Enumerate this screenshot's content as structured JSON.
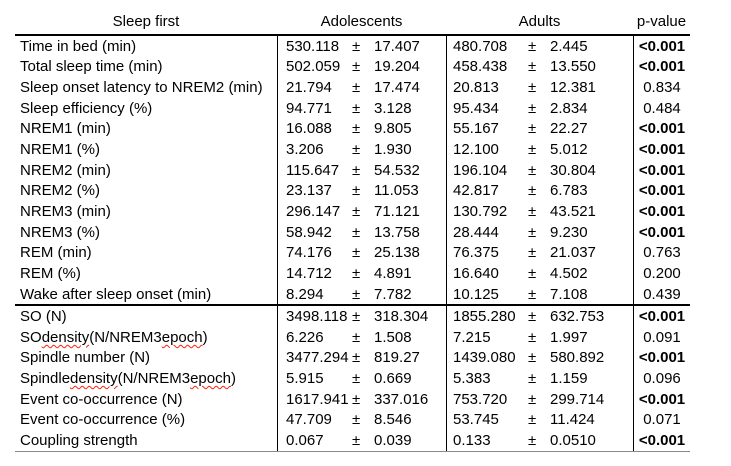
{
  "table": {
    "col_headers": {
      "label": "Sleep first",
      "group1": "Adolescents",
      "group2": "Adults",
      "pvalue": "p-value"
    },
    "plus_minus": "±",
    "sections": [
      {
        "rows": [
          {
            "label": "Time in bed (min)",
            "g1_mean": "530.118",
            "g1_sd": "17.407",
            "g2_mean": "480.708",
            "g2_sd": "2.445",
            "p": "<0.001",
            "p_bold": true
          },
          {
            "label": "Total sleep time (min)",
            "g1_mean": "502.059",
            "g1_sd": "19.204",
            "g2_mean": "458.438",
            "g2_sd": "13.550",
            "p": "<0.001",
            "p_bold": true
          },
          {
            "label": "Sleep onset latency to NREM2 (min)",
            "g1_mean": "21.794",
            "g1_sd": "17.474",
            "g2_mean": "20.813",
            "g2_sd": "12.381",
            "p": "0.834",
            "p_bold": false
          },
          {
            "label": "Sleep efficiency (%)",
            "g1_mean": "94.771",
            "g1_sd": "3.128",
            "g2_mean": "95.434",
            "g2_sd": "2.834",
            "p": "0.484",
            "p_bold": false
          },
          {
            "label": "NREM1 (min)",
            "g1_mean": "16.088",
            "g1_sd": "9.805",
            "g2_mean": "55.167",
            "g2_sd": "22.27",
            "p": "<0.001",
            "p_bold": true
          },
          {
            "label": "NREM1 (%)",
            "g1_mean": "3.206",
            "g1_sd": "1.930",
            "g2_mean": "12.100",
            "g2_sd": "5.012",
            "p": "<0.001",
            "p_bold": true
          },
          {
            "label": "NREM2 (min)",
            "g1_mean": "115.647",
            "g1_sd": "54.532",
            "g2_mean": "196.104",
            "g2_sd": "30.804",
            "p": "<0.001",
            "p_bold": true
          },
          {
            "label": "NREM2 (%)",
            "g1_mean": "23.137",
            "g1_sd": "11.053",
            "g2_mean": "42.817",
            "g2_sd": "6.783",
            "p": "<0.001",
            "p_bold": true
          },
          {
            "label": "NREM3 (min)",
            "g1_mean": "296.147",
            "g1_sd": "71.121",
            "g2_mean": "130.792",
            "g2_sd": "43.521",
            "p": "<0.001",
            "p_bold": true
          },
          {
            "label": "NREM3 (%)",
            "g1_mean": "58.942",
            "g1_sd": "13.758",
            "g2_mean": "28.444",
            "g2_sd": "9.230",
            "p": "<0.001",
            "p_bold": true
          },
          {
            "label": "REM (min)",
            "g1_mean": "74.176",
            "g1_sd": "25.138",
            "g2_mean": "76.375",
            "g2_sd": "21.037",
            "p": "0.763",
            "p_bold": false
          },
          {
            "label": "REM (%)",
            "g1_mean": "14.712",
            "g1_sd": "4.891",
            "g2_mean": "16.640",
            "g2_sd": "4.502",
            "p": "0.200",
            "p_bold": false
          },
          {
            "label": "Wake after sleep onset (min)",
            "g1_mean": "8.294",
            "g1_sd": "7.782",
            "g2_mean": "10.125",
            "g2_sd": "7.108",
            "p": "0.439",
            "p_bold": false
          }
        ]
      },
      {
        "rows": [
          {
            "label": "SO (N)",
            "g1_mean": "3498.118",
            "g1_sd": "318.304",
            "g2_mean": "1855.280",
            "g2_sd": "632.753",
            "p": "<0.001",
            "p_bold": true
          },
          {
            "label": "SO density (N/NREM3 epoch)",
            "label_parts": [
              {
                "t": "SO "
              },
              {
                "t": "density",
                "misspelled": true
              },
              {
                "t": " (N/NREM3 "
              },
              {
                "t": "epoch",
                "misspelled": true
              },
              {
                "t": ")"
              }
            ],
            "g1_mean": "6.226",
            "g1_sd": "1.508",
            "g2_mean": "7.215",
            "g2_sd": "1.997",
            "p": "0.091",
            "p_bold": false
          },
          {
            "label": "Spindle number (N)",
            "g1_mean": "3477.294",
            "g1_sd": "819.27",
            "g2_mean": "1439.080",
            "g2_sd": "580.892",
            "p": "<0.001",
            "p_bold": true
          },
          {
            "label": "Spindle density (N/NREM3 epoch)",
            "label_parts": [
              {
                "t": "Spindle "
              },
              {
                "t": "density",
                "misspelled": true
              },
              {
                "t": " (N/NREM3 "
              },
              {
                "t": "epoch",
                "misspelled": true
              },
              {
                "t": ")"
              }
            ],
            "g1_mean": "5.915",
            "g1_sd": "0.669",
            "g2_mean": "5.383",
            "g2_sd": "1.159",
            "p": "0.096",
            "p_bold": false
          },
          {
            "label": "Event co-occurrence (N)",
            "g1_mean": "1617.941",
            "g1_sd": "337.016",
            "g2_mean": "753.720",
            "g2_sd": "299.714",
            "p": "<0.001",
            "p_bold": true
          },
          {
            "label": "Event co-occurrence (%)",
            "g1_mean": "47.709",
            "g1_sd": "8.546",
            "g2_mean": "53.745",
            "g2_sd": "11.424",
            "p": "0.071",
            "p_bold": false
          },
          {
            "label": "Coupling strength",
            "g1_mean": "0.067",
            "g1_sd": "0.039",
            "g2_mean": "0.133",
            "g2_sd": "0.0510",
            "p": "<0.001",
            "p_bold": true
          }
        ]
      }
    ]
  },
  "colors": {
    "text": "#000000",
    "border": "#000000",
    "bottom_rule": "#8a8a8a",
    "spellcheck_underline": "#ff1f0f",
    "background": "#ffffff"
  }
}
